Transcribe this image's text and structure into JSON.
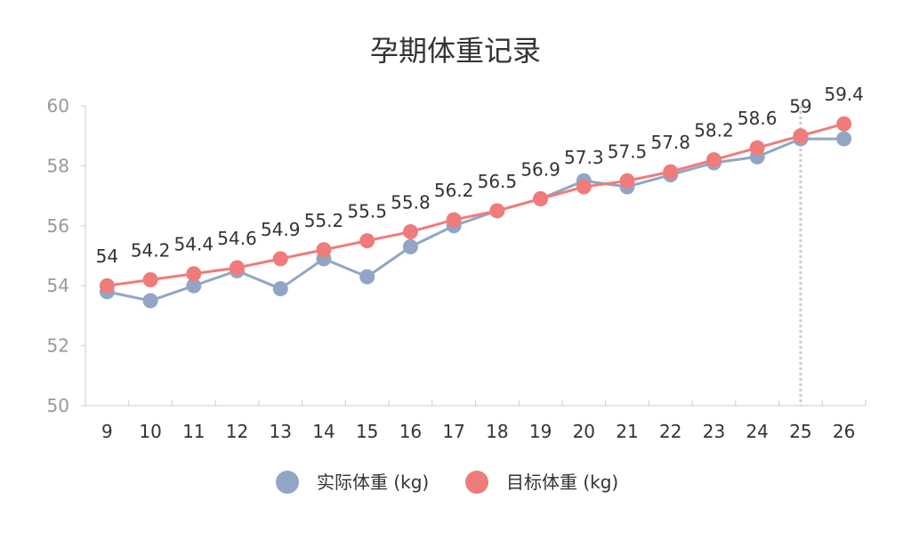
{
  "chart_data": {
    "type": "line",
    "title": "孕期体重记录",
    "categories": [
      "9",
      "10",
      "11",
      "12",
      "13",
      "14",
      "15",
      "16",
      "17",
      "18",
      "19",
      "20",
      "21",
      "22",
      "23",
      "24",
      "25",
      "26"
    ],
    "ylim": [
      50,
      60
    ],
    "yticks": [
      "50",
      "52",
      "54",
      "56",
      "58",
      "60"
    ],
    "series": [
      {
        "name": "实际体重 (kg)",
        "color": "#91a6c4",
        "values": [
          53.8,
          53.5,
          54.0,
          54.5,
          53.9,
          54.9,
          54.3,
          55.3,
          56.0,
          56.5,
          56.9,
          57.5,
          57.3,
          57.7,
          58.1,
          58.3,
          58.9,
          58.9
        ]
      },
      {
        "name": "目标体重 (kg)",
        "color": "#f07b7b",
        "values": [
          54,
          54.2,
          54.4,
          54.6,
          54.9,
          55.2,
          55.5,
          55.8,
          56.2,
          56.5,
          56.9,
          57.3,
          57.5,
          57.8,
          58.2,
          58.6,
          59,
          59.4
        ]
      }
    ],
    "data_labels": [
      "54",
      "54.2",
      "54.4",
      "54.6",
      "54.9",
      "55.2",
      "55.5",
      "55.8",
      "56.2",
      "56.5",
      "56.9",
      "57.3",
      "57.5",
      "57.8",
      "58.2",
      "58.6",
      "59",
      "59.4"
    ],
    "highlighted_category": "25",
    "grid": false,
    "legend_position": "bottom"
  }
}
